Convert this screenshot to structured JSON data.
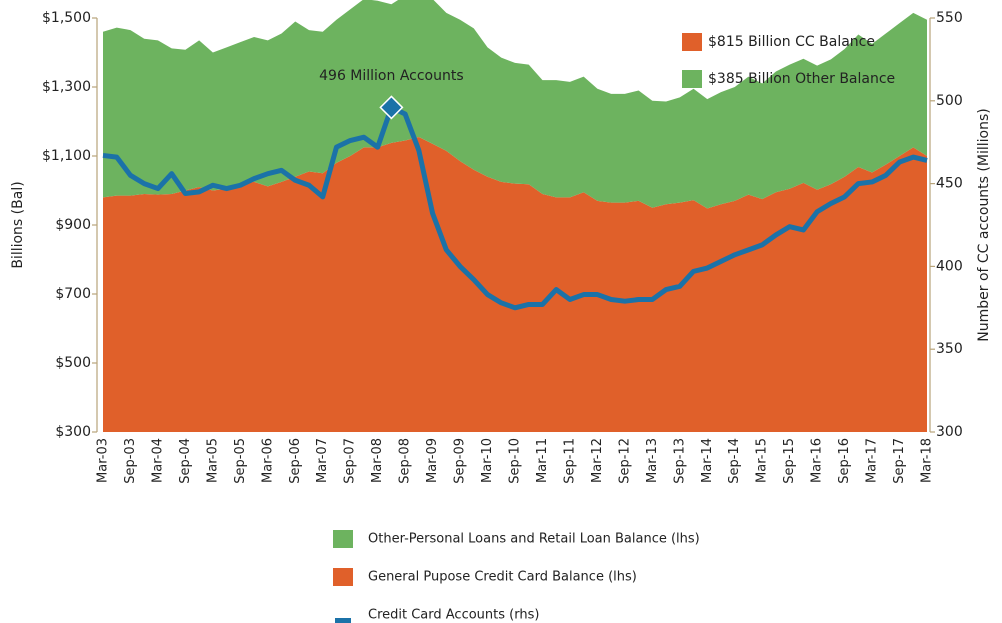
{
  "chart_data": {
    "type": "stacked-area-line",
    "categories": [
      "Mar-03",
      null,
      "Sep-03",
      null,
      "Mar-04",
      null,
      "Sep-04",
      null,
      "Mar-05",
      null,
      "Sep-05",
      null,
      "Mar-06",
      null,
      "Sep-06",
      null,
      "Mar-07",
      null,
      "Sep-07",
      null,
      "Mar-08",
      null,
      "Sep-08",
      null,
      "Mar-09",
      null,
      "Sep-09",
      null,
      "Mar-10",
      null,
      "Sep-10",
      null,
      "Mar-11",
      null,
      "Sep-11",
      null,
      "Mar-12",
      null,
      "Sep-12",
      null,
      "Mar-13",
      null,
      "Sep-13",
      null,
      "Mar-14",
      null,
      "Sep-14",
      null,
      "Mar-15",
      null,
      "Sep-15",
      null,
      "Mar-16",
      null,
      "Sep-16",
      null,
      "Mar-17",
      null,
      "Sep-17",
      null,
      "Mar-18"
    ],
    "series": [
      {
        "name": "General Pupose Credit Card Balance (lhs)",
        "color": "#e0602a",
        "kind": "area",
        "values": [
          680,
          685,
          685,
          690,
          688,
          690,
          700,
          710,
          700,
          705,
          720,
          725,
          712,
          725,
          740,
          755,
          750,
          780,
          800,
          825,
          825,
          838,
          845,
          855,
          835,
          815,
          785,
          760,
          740,
          725,
          720,
          718,
          690,
          680,
          680,
          695,
          670,
          665,
          665,
          670,
          650,
          660,
          665,
          672,
          648,
          660,
          670,
          688,
          675,
          695,
          705,
          722,
          702,
          718,
          740,
          768,
          752,
          775,
          800,
          825,
          800
        ]
      },
      {
        "name": "Other-Personal Loans and Retail Loan Balance (lhs)",
        "color": "#6db35f",
        "kind": "area",
        "values": [
          480,
          487,
          480,
          450,
          447,
          422,
          408,
          425,
          400,
          410,
          410,
          420,
          423,
          430,
          450,
          410,
          410,
          415,
          425,
          430,
          425,
          402,
          420,
          417,
          420,
          400,
          410,
          410,
          375,
          360,
          350,
          347,
          330,
          340,
          335,
          335,
          325,
          315,
          315,
          320,
          310,
          298,
          305,
          323,
          317,
          325,
          330,
          342,
          335,
          350,
          360,
          360,
          360,
          362,
          370,
          384,
          373,
          380,
          385,
          390,
          395
        ]
      },
      {
        "name": "Credit Card Accounts (rhs)",
        "color": "#1b72a8",
        "kind": "line",
        "axis": "y2",
        "values": [
          467,
          466,
          455,
          450,
          447,
          456,
          444,
          445,
          449,
          447,
          449,
          453,
          456,
          458,
          452,
          449,
          442,
          472,
          476,
          478,
          472,
          496,
          492,
          470,
          432,
          410,
          400,
          392,
          383,
          378,
          375,
          377,
          377,
          386,
          380,
          383,
          383,
          380,
          379,
          380,
          380,
          386,
          388,
          397,
          399,
          403,
          407,
          410,
          413,
          419,
          424,
          422,
          433,
          438,
          442,
          450,
          451,
          455,
          463,
          466,
          464
        ]
      }
    ],
    "ylim": [
      300,
      1500
    ],
    "yticks": [
      {
        "value": 300,
        "label": "$300"
      },
      {
        "value": 500,
        "label": "$500"
      },
      {
        "value": 700,
        "label": "$700"
      },
      {
        "value": 900,
        "label": "$900"
      },
      {
        "value": 1100,
        "label": "$1,100"
      },
      {
        "value": 1300,
        "label": "$1,300"
      },
      {
        "value": 1500,
        "label": "$1,500"
      }
    ],
    "y2lim": [
      300,
      550
    ],
    "y2ticks": [
      300,
      350,
      400,
      450,
      500,
      550
    ],
    "ylabel": "Billions (Bal)",
    "y2label": "Number of CC accounts (Millions)",
    "annotation": "496 Million Accounts",
    "callouts": [
      {
        "text": "$815 Billion CC Balance",
        "color": "#e0602a"
      },
      {
        "text": "$385 Billion Other Balance",
        "color": "#6db35f"
      }
    ],
    "grid": false,
    "legend": "bottom"
  }
}
